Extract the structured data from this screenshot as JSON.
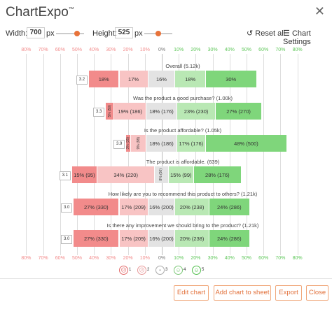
{
  "app": {
    "title": "ChartExpo",
    "trademark": "™"
  },
  "toolbar": {
    "width_label": "Width:",
    "width_value": "700",
    "width_unit": "px",
    "height_label": "Height:",
    "height_value": "525",
    "height_unit": "px",
    "reset_label": "Reset all",
    "settings_label": "Chart Settings"
  },
  "chart_data": {
    "type": "bar",
    "subtype": "diverging-stacked-likert",
    "scale_ticks": [
      "80%",
      "70%",
      "60%",
      "50%",
      "40%",
      "30%",
      "20%",
      "10%",
      "0%",
      "10%",
      "20%",
      "30%",
      "40%",
      "50%",
      "60%",
      "70%",
      "80%"
    ],
    "legend": [
      "1",
      "2",
      "3",
      "4",
      "5"
    ],
    "categories": [
      "Overall (5.12k)",
      "Was the product a good purchase? (1.00k)",
      "Is the product affordable? (1.05k)",
      "The product is affordable. (639)",
      "How likely are you to recommend this product to others? (1.21k)",
      "Is there any improvement we should bring to the product? (1.21k)"
    ],
    "averages": [
      "3.2",
      "3.3",
      "3.9",
      "3.1",
      "3.0",
      "3.0"
    ],
    "series": [
      {
        "name": "1",
        "values": [
          18,
          5,
          3,
          15,
          27,
          27
        ],
        "labels": [
          "18%",
          "5% (50)",
          "3% (35)",
          "15% (95)",
          "27% (330)",
          "27% (330)"
        ]
      },
      {
        "name": "2",
        "values": [
          17,
          19,
          9,
          34,
          17,
          17
        ],
        "labels": [
          "17%",
          "19% (186)",
          "9% (98)",
          "34% (220)",
          "17% (209)",
          "17% (209)"
        ]
      },
      {
        "name": "3",
        "values": [
          16,
          18,
          18,
          8,
          16,
          16
        ],
        "labels": [
          "16%",
          "18% (176)",
          "18% (186)",
          "8% (50)",
          "16% (200)",
          "16% (200)"
        ]
      },
      {
        "name": "4",
        "values": [
          18,
          23,
          17,
          15,
          20,
          20
        ],
        "labels": [
          "18%",
          "23% (230)",
          "17% (176)",
          "15% (99)",
          "20% (238)",
          "20% (238)"
        ]
      },
      {
        "name": "5",
        "values": [
          30,
          27,
          48,
          28,
          24,
          24
        ],
        "labels": [
          "30%",
          "27% (270)",
          "48% (500)",
          "28% (176)",
          "24% (286)",
          "24% (286)"
        ]
      }
    ],
    "colors": [
      "#f28b8b",
      "#f8c4c4",
      "#e3e3e3",
      "#b9e8b4",
      "#7fd67b"
    ]
  },
  "actions": {
    "edit": "Edit chart",
    "add": "Add chart to sheet",
    "export": "Export",
    "close": "Close"
  }
}
